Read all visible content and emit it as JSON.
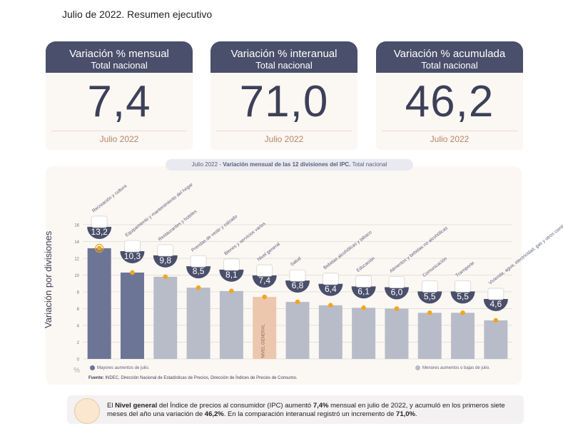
{
  "page_title": "Julio de 2022. Resumen ejecutivo",
  "cards": [
    {
      "title": "Variación % mensual",
      "subtitle": "Total nacional",
      "value": "7,4",
      "period": "Julio 2022"
    },
    {
      "title": "Variación % interanual",
      "subtitle": "Total nacional",
      "value": "71,0",
      "period": "Julio 2022"
    },
    {
      "title": "Variación % acumulada",
      "subtitle": "Total nacional",
      "value": "46,2",
      "period": "Julio 2022"
    }
  ],
  "chart_header": {
    "period": "Julio 2022",
    "dash": "-",
    "bold": "Variación mensual de las 12 divisiones del IPC.",
    "tail": "Total nacional"
  },
  "colors": {
    "dark": "#6c7596",
    "light": "#b8bcc9",
    "general": "#ecc7ad",
    "dot": "#f2a61c",
    "badge": "#4a4f6b"
  },
  "chart_data": {
    "type": "bar",
    "title": "Variación mensual de las 12 divisiones del IPC.",
    "ylabel": "Variación por divisiones",
    "ylim": [
      0,
      16
    ],
    "yticks": [
      "0",
      "2",
      "4",
      "6",
      "8",
      "10",
      "12",
      "14",
      "16"
    ],
    "y_unit": "%",
    "grid": true,
    "categories": [
      "Recreación y cultura",
      "Equipamiento y mantenimiento del hogar",
      "Restaurantes y hoteles",
      "Prendas de vestir y calzado",
      "Bienes y servicios varios",
      "Nivel general",
      "Salud",
      "Bebidas alcohólicas y tabaco",
      "Educación",
      "Alimentos y bebidas no alcohólicas",
      "Comunicación",
      "Transporte",
      "Vivienda, agua, electricidad, gas y otros combustibles"
    ],
    "values": [
      13.2,
      10.3,
      9.8,
      8.5,
      8.1,
      7.4,
      6.8,
      6.4,
      6.1,
      6.0,
      5.5,
      5.5,
      4.6
    ],
    "value_labels": [
      "13,2",
      "10,3",
      "9,8",
      "8,5",
      "8,1",
      "7,4",
      "6,8",
      "6,4",
      "6,1",
      "6,0",
      "5,5",
      "5,5",
      "4,6"
    ],
    "groups": [
      "high",
      "high",
      "low",
      "low",
      "low",
      "general",
      "low",
      "low",
      "low",
      "low",
      "low",
      "low",
      "low"
    ],
    "general_bar_label": "NIVEL GENERAL",
    "legend": [
      "Mayores aumentos de julio.",
      "Menores aumentos o bajas de julio."
    ]
  },
  "source": {
    "label": "Fuente:",
    "text": "INDEC, Dirección Nacional de Estadísticas de Precios, Dirección de Índices de Precios de Consumo."
  },
  "footer": {
    "t1": "El ",
    "b1": "Nivel general",
    "t2": " del Índice de precios al consumidor (IPC) aumentó ",
    "b2": "7,4%",
    "t3": " mensual en julio de 2022, y acumuló en los primeros siete meses del año una variación de ",
    "b3": "46,2%",
    "t4": ". En la comparación interanual registró un incremento de ",
    "b4": "71,0%",
    "t5": "."
  }
}
